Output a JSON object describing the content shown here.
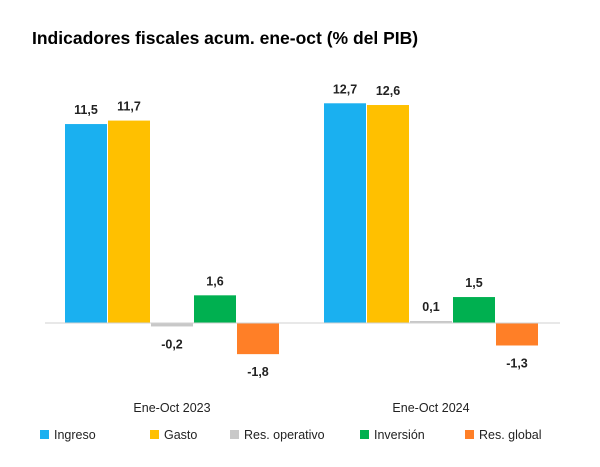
{
  "chart_data": {
    "type": "bar",
    "title": "Indicadores fiscales acum. ene-oct (% del PIB)",
    "categories": [
      "Ene-Oct 2023",
      "Ene-Oct 2024"
    ],
    "series": [
      {
        "name": "Ingreso",
        "color": "#1ab0f0",
        "values": [
          11.5,
          12.7
        ],
        "labels": [
          "11,5",
          "12,7"
        ]
      },
      {
        "name": "Gasto",
        "color": "#ffc000",
        "values": [
          11.7,
          12.6
        ],
        "labels": [
          "11,7",
          "12,6"
        ]
      },
      {
        "name": "Res. operativo",
        "color": "#c8c8c8",
        "values": [
          -0.2,
          0.1
        ],
        "labels": [
          "-0,2",
          "0,1"
        ]
      },
      {
        "name": "Inversión",
        "color": "#00b050",
        "values": [
          1.6,
          1.5
        ],
        "labels": [
          "1,6",
          "1,5"
        ]
      },
      {
        "name": "Res. global",
        "color": "#ff7f27",
        "values": [
          -1.8,
          -1.3
        ],
        "labels": [
          "-1,8",
          "-1,3"
        ]
      }
    ],
    "legend_position": "bottom",
    "grid": false,
    "ylim": [
      -2.5,
      13.5
    ]
  }
}
